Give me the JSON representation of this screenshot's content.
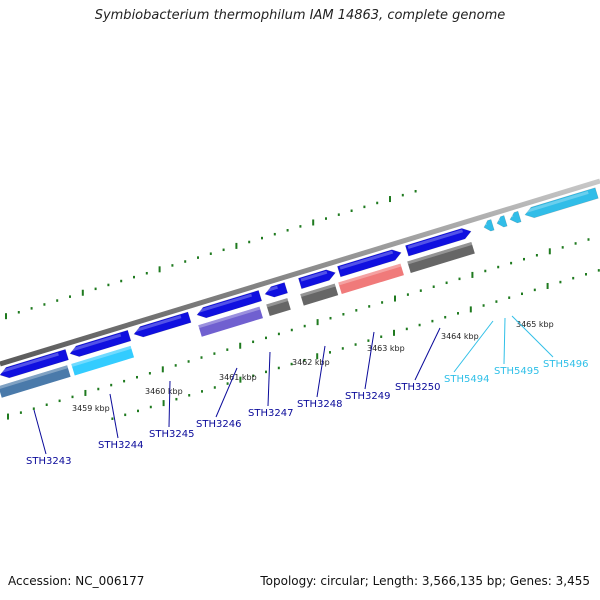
{
  "title": "Symbiobacterium thermophilum IAM 14863, complete genome",
  "footer": {
    "accession": "Accession: NC_006177",
    "summary": "Topology: circular; Length: 3,566,135 bp; Genes: 3,455"
  },
  "colors": {
    "backbone": "#8a8a8a",
    "tick": "#1f7a1f",
    "gene_blue": "#1010e0",
    "gene_cyan": "#31bde8",
    "label_dark": "#0a0a9a",
    "label_light": "#30c0e8"
  },
  "kbp_marks": [
    {
      "label": "3459 kbp"
    },
    {
      "label": "3460 kbp"
    },
    {
      "label": "3461 kbp"
    },
    {
      "label": "3462 kbp"
    },
    {
      "label": "3463 kbp"
    },
    {
      "label": "3464 kbp"
    },
    {
      "label": "3465 kbp"
    }
  ],
  "genes": [
    {
      "id": "STH3243",
      "color": "#1010e0",
      "rna_color": "#4a7aaa"
    },
    {
      "id": "STH3244",
      "color": "#1010e0",
      "rna_color": "#33ccff"
    },
    {
      "id": "STH3245",
      "color": "#1010e0",
      "rna_color": ""
    },
    {
      "id": "STH3246",
      "color": "#1010e0",
      "rna_color": "#7060d0"
    },
    {
      "id": "STH3247",
      "color": "#1010e0",
      "rna_color": "#666666"
    },
    {
      "id": "STH3248",
      "color": "#1010e0",
      "rna_color": "#666666"
    },
    {
      "id": "STH3249",
      "color": "#1010e0",
      "rna_color": "#f07a7a"
    },
    {
      "id": "STH3250",
      "color": "#1010e0",
      "rna_color": "#666666"
    },
    {
      "id": "STH5494",
      "color": "#31bde8",
      "rna_color": ""
    },
    {
      "id": "STH5495",
      "color": "#31bde8",
      "rna_color": ""
    },
    {
      "id": "STH5496",
      "color": "#31bde8",
      "rna_color": ""
    }
  ]
}
